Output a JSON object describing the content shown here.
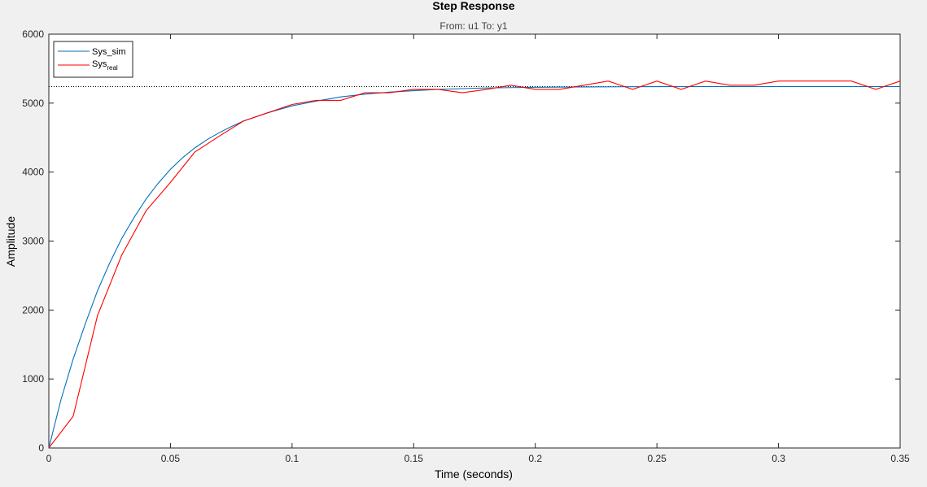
{
  "chart_data": {
    "type": "line",
    "title": "Step Response",
    "subtitle": "From: u1  To: y1",
    "xlabel": "Time (seconds)",
    "ylabel": "Amplitude",
    "xlim": [
      0,
      0.35
    ],
    "ylim": [
      0,
      6000
    ],
    "xticks": [
      0,
      0.05,
      0.1,
      0.15,
      0.2,
      0.25,
      0.3,
      0.35
    ],
    "xtick_labels": [
      "0",
      "0.05",
      "0.1",
      "0.15",
      "0.2",
      "0.25",
      "0.3",
      "0.35"
    ],
    "yticks": [
      0,
      1000,
      2000,
      3000,
      4000,
      5000,
      6000
    ],
    "ytick_labels": [
      "0",
      "1000",
      "2000",
      "3000",
      "4000",
      "5000",
      "6000"
    ],
    "grid": false,
    "legend_position": "top-left",
    "steady_state": 5240,
    "steady_state_color": "#000000",
    "series": [
      {
        "name": "Sys_sim",
        "legend_base": "Sys_sim",
        "legend_subscript": "",
        "color": "#0072BD",
        "x": [
          0,
          0.005,
          0.01,
          0.015,
          0.02,
          0.025,
          0.03,
          0.035,
          0.04,
          0.045,
          0.05,
          0.055,
          0.06,
          0.065,
          0.07,
          0.075,
          0.08,
          0.09,
          0.1,
          0.11,
          0.12,
          0.13,
          0.14,
          0.15,
          0.16,
          0.17,
          0.18,
          0.2,
          0.22,
          0.25,
          0.28,
          0.3,
          0.32,
          0.35
        ],
        "y": [
          0,
          700,
          1290,
          1800,
          2280,
          2680,
          3040,
          3340,
          3610,
          3840,
          4040,
          4210,
          4350,
          4470,
          4570,
          4660,
          4740,
          4860,
          4960,
          5030,
          5090,
          5130,
          5160,
          5180,
          5200,
          5210,
          5220,
          5230,
          5235,
          5238,
          5240,
          5240,
          5240,
          5240
        ]
      },
      {
        "name": "Sys real",
        "legend_base": "Sys",
        "legend_subscript": "real",
        "color": "#FF0000",
        "x": [
          0,
          0.01,
          0.02,
          0.03,
          0.04,
          0.05,
          0.06,
          0.07,
          0.08,
          0.09,
          0.1,
          0.11,
          0.12,
          0.13,
          0.14,
          0.15,
          0.16,
          0.17,
          0.18,
          0.19,
          0.2,
          0.21,
          0.22,
          0.23,
          0.24,
          0.25,
          0.26,
          0.27,
          0.28,
          0.29,
          0.3,
          0.31,
          0.32,
          0.33,
          0.34,
          0.35
        ],
        "y": [
          0,
          460,
          1920,
          2800,
          3440,
          3850,
          4290,
          4520,
          4740,
          4860,
          4980,
          5040,
          5040,
          5150,
          5150,
          5200,
          5200,
          5150,
          5200,
          5260,
          5200,
          5200,
          5260,
          5320,
          5200,
          5320,
          5200,
          5320,
          5260,
          5260,
          5320,
          5320,
          5320,
          5320,
          5200,
          5320
        ]
      }
    ]
  }
}
